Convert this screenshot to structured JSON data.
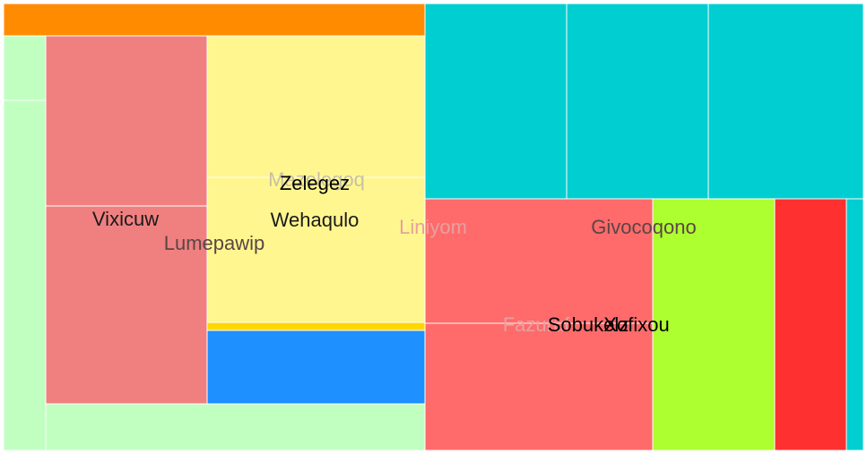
{
  "chart_data": {
    "type": "treemap",
    "title": "",
    "leaves": [
      {
        "label": "",
        "value": 2.7,
        "color": "#FF8C00"
      },
      {
        "label": "",
        "value": 0.9,
        "color": "#C1FFC1"
      },
      {
        "label": "",
        "value": 4.7,
        "color": "#C1FFC1"
      },
      {
        "label": "",
        "value": 5.4,
        "color": "#F08080"
      },
      {
        "label": "Vixicuw",
        "value": 6.3,
        "color": "#F08080"
      },
      {
        "label": "",
        "value": 3.2,
        "color": "#FFF68F"
      },
      {
        "label": "Wehaqulo",
        "value": 4.3,
        "color": "#FFF68F"
      },
      {
        "label": "",
        "value": 0.2,
        "color": "#FFD700"
      },
      {
        "label": "",
        "value": 1.3,
        "color": "#1E90FF"
      },
      {
        "label": "",
        "value": 1.6,
        "color": "#C1FFC1"
      },
      {
        "label": "",
        "value": 5.4,
        "color": "#00CED1"
      },
      {
        "label": "",
        "value": 5.4,
        "color": "#00CED1"
      },
      {
        "label": "",
        "value": 5.4,
        "color": "#00CED1"
      },
      {
        "label": "",
        "value": 4.5,
        "color": "#FF6A6A"
      },
      {
        "label": "Xofixou",
        "value": 3.9,
        "color": "#FF6A6A"
      },
      {
        "label": "",
        "value": 3.6,
        "color": "#ADFF2F"
      },
      {
        "label": "",
        "value": 2.1,
        "color": "#FF3030"
      },
      {
        "label": "",
        "value": 0.5,
        "color": "#00CED1"
      }
    ],
    "labels": [
      {
        "text": "Zelegez",
        "color": "#000000"
      },
      {
        "text": "Vixicuw",
        "color": "#1a1a1a"
      },
      {
        "text": "Wehaqulo",
        "color": "#1a1a1a"
      },
      {
        "text": "Lumepawip",
        "color": "#5a4545"
      },
      {
        "text": "Mazelegoq",
        "color": "#c8c0a0"
      },
      {
        "text": "Liniyom",
        "color": "#e8a0a0"
      },
      {
        "text": "Givocoqono",
        "color": "#5a4545"
      },
      {
        "text": "Fazuruf",
        "color": "#e8a0a0"
      },
      {
        "text": "Sobukelz",
        "color": "#000000"
      },
      {
        "text": "Xofixou",
        "color": "#000000"
      }
    ]
  }
}
